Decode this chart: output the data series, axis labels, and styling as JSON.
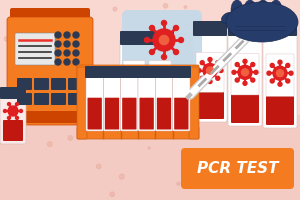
{
  "bg_top": "#FDECEA",
  "bg_bottom": "#F5B8B8",
  "bg_main": "#F8D8D0",
  "orange": "#F47B20",
  "orange_dark": "#D4600A",
  "dark_navy": "#2B3A52",
  "dark_navy2": "#1A2A3A",
  "red": "#E8312A",
  "red_dark": "#C02010",
  "light_pink": "#FAEAE8",
  "white": "#FFFFFF",
  "glove_color": "#263C6B",
  "glove_dark": "#1A2A50",
  "speech_blue": "#C5D9E8",
  "tube_liquid": "#C01810",
  "gray_line": "#909090",
  "label_text": "PCR TEST",
  "label_bg": "#F47B20",
  "label_fg": "#FFFFFF",
  "machine_top": "#CC4400",
  "machine_body": "#F47B20",
  "machine_base": "#D96010",
  "screen_bg": "#E8E8E8",
  "rack_orange": "#F47B20",
  "rack_border": "#D06010",
  "virus_red": "#E02020",
  "virus_inner": "#F06040"
}
